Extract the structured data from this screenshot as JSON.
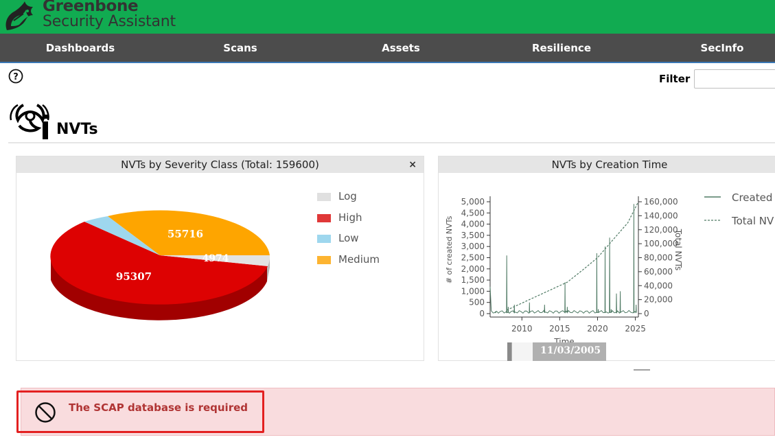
{
  "header": {
    "brand_line1": "Greenbone",
    "brand_line2": "Security Assistant",
    "logo_icon": "greenbone-dragon-logo"
  },
  "nav": {
    "items": [
      "Dashboards",
      "Scans",
      "Assets",
      "Resilience",
      "SecInfo"
    ]
  },
  "toolbar": {
    "help_icon": "question-circle-icon",
    "filter_label": "Filter",
    "filter_value": ""
  },
  "page": {
    "title": "NVTs",
    "title_icon": "biohazard-info-icon"
  },
  "severity_panel": {
    "title": "NVTs by Severity Class (Total: 159600)",
    "close_label": "×",
    "legend": [
      {
        "label": "Log",
        "color": "#e0e0e0"
      },
      {
        "label": "High",
        "color": "#e03838"
      },
      {
        "label": "Low",
        "color": "#9ed7ee"
      },
      {
        "label": "Medium",
        "color": "#fdb431"
      }
    ],
    "slice_labels": {
      "high": "95307",
      "medium": "55716",
      "log": "4974"
    }
  },
  "creation_panel": {
    "title": "NVTs by Creation Time",
    "legend": [
      {
        "label": "Created",
        "style": "solid"
      },
      {
        "label": "Total NV",
        "style": "dashed"
      }
    ],
    "y_left_label": "# of created NVTs",
    "y_right_label": "Total NVTs",
    "x_label": "Time",
    "y_left_ticks": [
      "5,000",
      "4,500",
      "4,000",
      "3,500",
      "3,000",
      "2,500",
      "2,000",
      "1,500",
      "1,000",
      "500",
      "0"
    ],
    "y_right_ticks": [
      "160,000",
      "140,000",
      "120,000",
      "100,000",
      "80,000",
      "60,000",
      "40,000",
      "20,000",
      "0"
    ],
    "x_ticks": [
      "2010",
      "2015",
      "2020",
      "2025"
    ],
    "range_start_label": "11/03/2005"
  },
  "chart_data": [
    {
      "type": "pie",
      "title": "NVTs by Severity Class (Total: 159600)",
      "categories": [
        "Log",
        "High",
        "Low",
        "Medium"
      ],
      "values": [
        4974,
        95307,
        3603,
        55716
      ],
      "colors": [
        "#e0e0e0",
        "#e03838",
        "#9ed7ee",
        "#fdb431"
      ],
      "legend_position": "right"
    },
    {
      "type": "line",
      "title": "NVTs by Creation Time",
      "xlabel": "Time",
      "ylabel": "# of created NVTs",
      "y2label": "Total NVTs",
      "xlim": [
        2005.8,
        2025.4
      ],
      "ylim": [
        0,
        5000
      ],
      "y2lim": [
        0,
        160000
      ],
      "series": [
        {
          "name": "Created",
          "style": "solid",
          "x": [
            2005.8,
            2006.5,
            2008.0,
            2008.2,
            2009.0,
            2011.0,
            2013.0,
            2015.7,
            2016.0,
            2019.9,
            2020.1,
            2021.0,
            2021.6,
            2021.8,
            2022.5,
            2023.0,
            2024.8,
            2025.1
          ],
          "y": [
            1200,
            100,
            2600,
            300,
            400,
            500,
            400,
            1400,
            300,
            2700,
            200,
            3000,
            3400,
            200,
            900,
            1000,
            4900,
            400
          ]
        },
        {
          "name": "Total NV",
          "style": "dashed",
          "x": [
            2008.0,
            2010.0,
            2012.0,
            2014.0,
            2016.0,
            2018.0,
            2020.0,
            2022.0,
            2024.0,
            2025.3
          ],
          "y": [
            5000,
            15000,
            25000,
            35000,
            45000,
            62000,
            80000,
            105000,
            130000,
            158000
          ]
        }
      ]
    }
  ],
  "error": {
    "icon": "prohibited-icon",
    "message": "The SCAP database is required"
  }
}
